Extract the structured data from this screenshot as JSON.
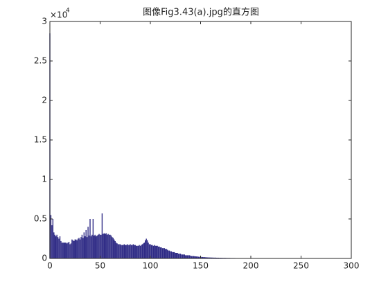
{
  "chart_data": {
    "type": "stem",
    "title": "图像Fig3.43(a).jpg的直方图",
    "y_scale_label": {
      "base": "×10",
      "exponent": "4"
    },
    "color": "#2e2a85",
    "xlim": [
      0,
      300
    ],
    "xticks": [
      0,
      50,
      100,
      150,
      200,
      250,
      300
    ],
    "ylim": [
      0,
      3
    ],
    "yticks": [
      0,
      0.5,
      1,
      1.5,
      2,
      2.5,
      3
    ],
    "grid": false,
    "box": true,
    "x": [
      0,
      1,
      2,
      3,
      4,
      5,
      6,
      7,
      8,
      9,
      10,
      11,
      12,
      13,
      14,
      15,
      16,
      17,
      18,
      19,
      20,
      21,
      22,
      23,
      24,
      25,
      26,
      27,
      28,
      29,
      30,
      31,
      32,
      33,
      34,
      35,
      36,
      37,
      38,
      39,
      40,
      41,
      42,
      43,
      44,
      45,
      46,
      47,
      48,
      49,
      50,
      51,
      52,
      53,
      54,
      55,
      56,
      57,
      58,
      59,
      60,
      61,
      62,
      63,
      64,
      65,
      66,
      67,
      68,
      69,
      70,
      71,
      72,
      73,
      74,
      75,
      76,
      77,
      78,
      79,
      80,
      81,
      82,
      83,
      84,
      85,
      86,
      87,
      88,
      89,
      90,
      91,
      92,
      93,
      94,
      95,
      96,
      97,
      98,
      99,
      100,
      101,
      102,
      103,
      104,
      105,
      106,
      107,
      108,
      109,
      110,
      111,
      112,
      113,
      114,
      115,
      116,
      117,
      118,
      119,
      120,
      121,
      122,
      123,
      124,
      125,
      126,
      127,
      128,
      129,
      130,
      131,
      132,
      133,
      134,
      135,
      136,
      137,
      138,
      139,
      140,
      141,
      142,
      143,
      144,
      145,
      146,
      147,
      148,
      149,
      150,
      151,
      152,
      153,
      154,
      155,
      156,
      157,
      158,
      159,
      160,
      161,
      162,
      163,
      164,
      165,
      166,
      167,
      168,
      169,
      170,
      171,
      172,
      173,
      174,
      175,
      176,
      177,
      178,
      179,
      180,
      181,
      182,
      183,
      184,
      185,
      186,
      187,
      188,
      189,
      190,
      191,
      192,
      193,
      194,
      195,
      196,
      197,
      198,
      199,
      200,
      201,
      202,
      203,
      204,
      205,
      206,
      207,
      208,
      209,
      210,
      211,
      212,
      213,
      214,
      215,
      216,
      217,
      218,
      219,
      220,
      221,
      222,
      223,
      224,
      225,
      226,
      227,
      228,
      229,
      230,
      231,
      232,
      233,
      234,
      235,
      236,
      237,
      238,
      239,
      240,
      241,
      242,
      243,
      244,
      245,
      246,
      247,
      248,
      249,
      250,
      251,
      252,
      253,
      254,
      255
    ],
    "values": [
      2.85,
      0.55,
      0.42,
      0.5,
      0.33,
      0.3,
      0.28,
      0.3,
      0.27,
      0.25,
      0.28,
      0.22,
      0.2,
      0.2,
      0.2,
      0.2,
      0.2,
      0.19,
      0.2,
      0.21,
      0.18,
      0.19,
      0.24,
      0.23,
      0.22,
      0.24,
      0.24,
      0.23,
      0.25,
      0.26,
      0.24,
      0.27,
      0.3,
      0.26,
      0.33,
      0.28,
      0.36,
      0.27,
      0.4,
      0.29,
      0.5,
      0.28,
      0.3,
      0.5,
      0.29,
      0.3,
      0.28,
      0.29,
      0.3,
      0.31,
      0.3,
      0.3,
      0.57,
      0.31,
      0.32,
      0.31,
      0.32,
      0.3,
      0.31,
      0.3,
      0.3,
      0.29,
      0.27,
      0.26,
      0.24,
      0.22,
      0.2,
      0.19,
      0.18,
      0.18,
      0.18,
      0.17,
      0.17,
      0.17,
      0.18,
      0.17,
      0.17,
      0.18,
      0.17,
      0.17,
      0.18,
      0.17,
      0.17,
      0.18,
      0.17,
      0.17,
      0.16,
      0.16,
      0.16,
      0.17,
      0.16,
      0.17,
      0.18,
      0.19,
      0.2,
      0.23,
      0.25,
      0.23,
      0.2,
      0.18,
      0.18,
      0.17,
      0.17,
      0.16,
      0.17,
      0.16,
      0.16,
      0.16,
      0.15,
      0.15,
      0.14,
      0.14,
      0.13,
      0.13,
      0.13,
      0.12,
      0.12,
      0.11,
      0.1,
      0.1,
      0.09,
      0.09,
      0.08,
      0.08,
      0.08,
      0.07,
      0.07,
      0.07,
      0.06,
      0.06,
      0.06,
      0.05,
      0.05,
      0.05,
      0.05,
      0.04,
      0.04,
      0.04,
      0.04,
      0.04,
      0.035,
      0.03,
      0.03,
      0.03,
      0.028,
      0.026,
      0.025,
      0.024,
      0.022,
      0.02,
      0.02,
      0.019,
      0.018,
      0.017,
      0.016,
      0.015,
      0.014,
      0.013,
      0.013,
      0.012,
      0.012,
      0.011,
      0.011,
      0.01,
      0.01,
      0.01,
      0.009,
      0.009,
      0.009,
      0.008,
      0.008,
      0.008,
      0.007,
      0.007,
      0.007,
      0.007,
      0.006,
      0.006,
      0.006,
      0.006,
      0.005,
      0.005,
      0.005,
      0.005,
      0.005,
      0.004,
      0.004,
      0.004,
      0.004,
      0.004,
      0.004,
      0.003,
      0.003,
      0.003,
      0.003,
      0.003,
      0.003,
      0.003,
      0.003,
      0.003,
      0.002,
      0.002,
      0.002,
      0.002,
      0.002,
      0.002,
      0.002,
      0.002,
      0.002,
      0.002,
      0.002,
      0.002,
      0.002,
      0.002,
      0.002,
      0.002,
      0.002,
      0.002,
      0.002,
      0.002,
      0.002,
      0.002,
      0.002,
      0.002,
      0.002,
      0.001,
      0.001,
      0.001,
      0.001,
      0.001,
      0.001,
      0.001,
      0.001,
      0.001,
      0.001,
      0.001,
      0.001,
      0.001,
      0.001,
      0.001,
      0.001,
      0.001,
      0.001,
      0.001,
      0.001,
      0.001,
      0.001,
      0.001,
      0.001,
      0.001,
      0.001,
      0.001,
      0.001,
      0.001,
      0,
      0
    ]
  }
}
